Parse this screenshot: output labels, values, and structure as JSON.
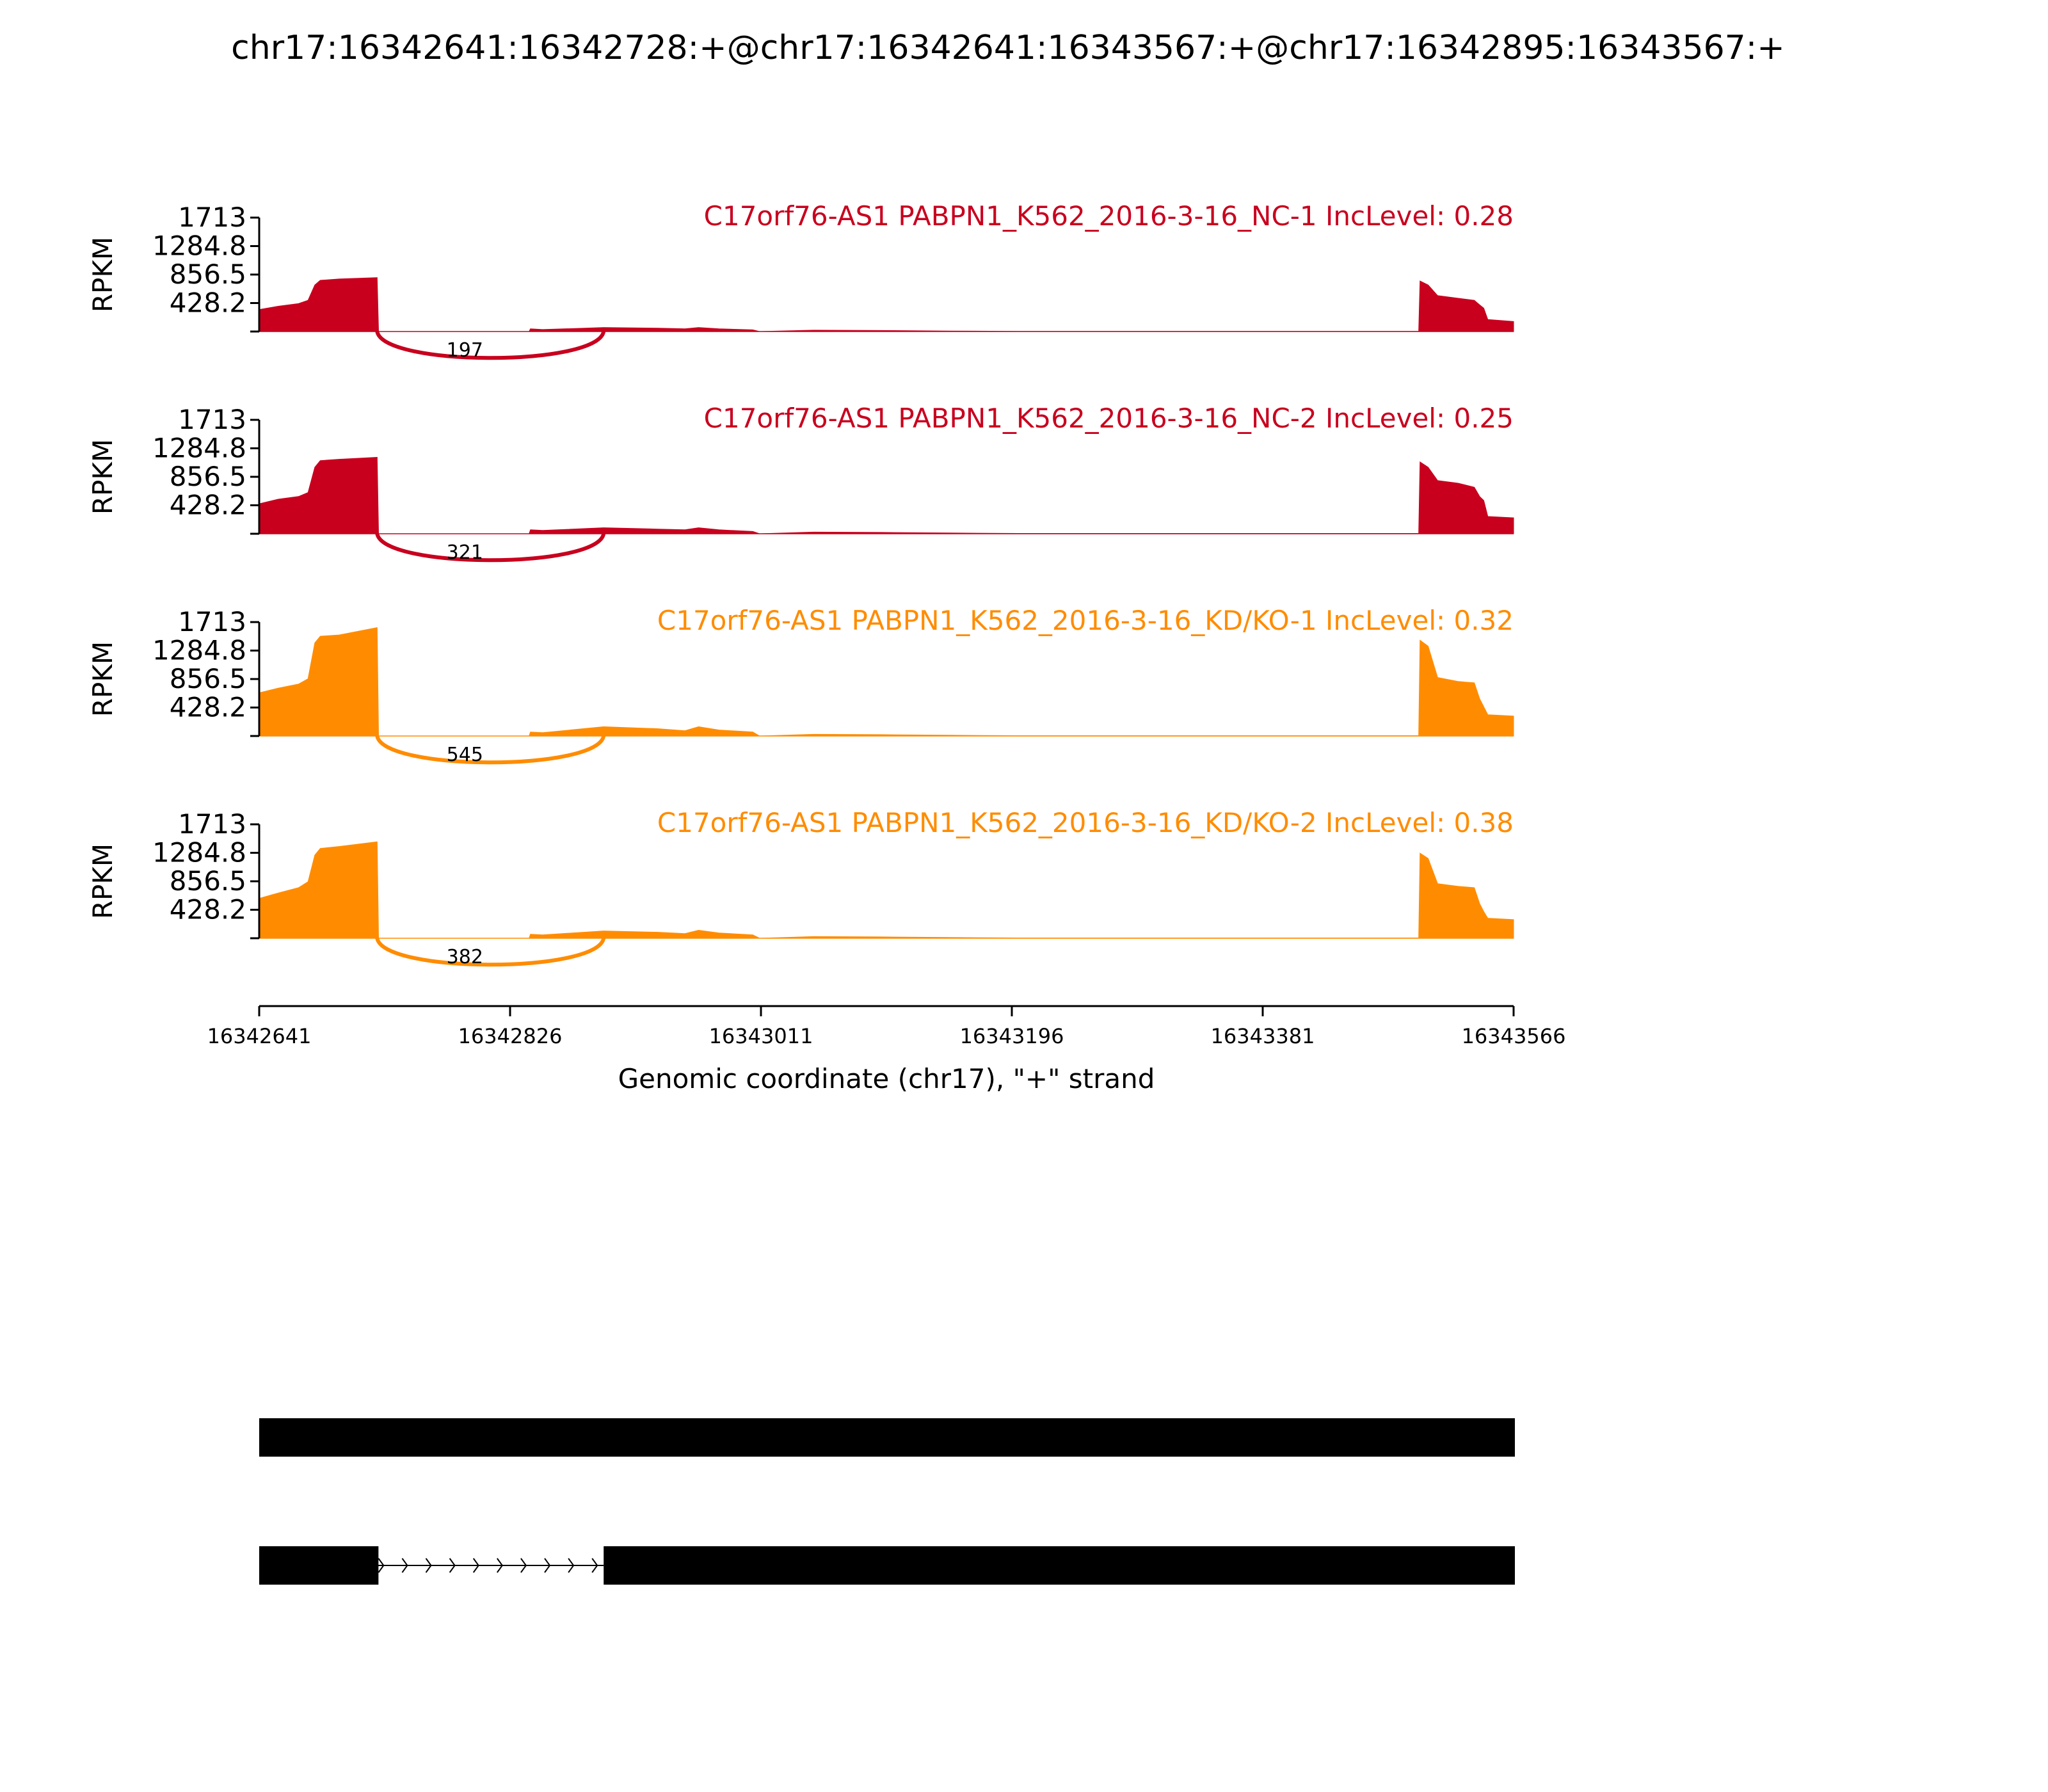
{
  "title": "chr17:16342641:16342728:+@chr17:16342641:16343567:+@chr17:16342895:16343567:+",
  "colors": {
    "nc": "#c8001e",
    "kd": "#ff8c00",
    "axis": "#000000",
    "gene": "#000000"
  },
  "chart_data": {
    "type": "area",
    "ylabel": "RPKM",
    "xlabel": "Genomic coordinate (chr17), \"+\" strand",
    "xlim": [
      16342641,
      16343566
    ],
    "ylim": [
      0,
      1713
    ],
    "yticks": [
      "1713",
      "1284.8",
      "856.5",
      "428.2"
    ],
    "ytick_values": [
      1713,
      1284.8,
      856.5,
      428.2
    ],
    "xticks": [
      "16342641",
      "16342826",
      "16343011",
      "16343196",
      "16343381",
      "16343566"
    ],
    "xtick_values": [
      16342641,
      16342826,
      16343011,
      16343196,
      16343381,
      16343566
    ],
    "tracks": [
      {
        "label": "C17orf76-AS1 PABPN1_K562_2016-3-16_NC-1 IncLevel: 0.28",
        "color_key": "nc",
        "junction": {
          "count": "197",
          "start": 16342728,
          "end": 16342895
        },
        "coverage": [
          [
            16342641,
            330
          ],
          [
            16342655,
            380
          ],
          [
            16342670,
            420
          ],
          [
            16342677,
            470
          ],
          [
            16342682,
            700
          ],
          [
            16342686,
            770
          ],
          [
            16342700,
            790
          ],
          [
            16342728,
            810
          ],
          [
            16342729,
            0
          ],
          [
            16342840,
            0
          ],
          [
            16342841,
            40
          ],
          [
            16342850,
            30
          ],
          [
            16342895,
            60
          ],
          [
            16342935,
            50
          ],
          [
            16342955,
            40
          ],
          [
            16342965,
            60
          ],
          [
            16342980,
            40
          ],
          [
            16343005,
            25
          ],
          [
            16343010,
            0
          ],
          [
            16343050,
            20
          ],
          [
            16343100,
            15
          ],
          [
            16343150,
            8
          ],
          [
            16343200,
            3
          ],
          [
            16343496,
            3
          ],
          [
            16343497,
            760
          ],
          [
            16343503,
            700
          ],
          [
            16343510,
            540
          ],
          [
            16343525,
            500
          ],
          [
            16343537,
            470
          ],
          [
            16343541,
            400
          ],
          [
            16343544,
            350
          ],
          [
            16343547,
            180
          ],
          [
            16343566,
            150
          ]
        ]
      },
      {
        "label": "C17orf76-AS1 PABPN1_K562_2016-3-16_NC-2 IncLevel: 0.25",
        "color_key": "nc",
        "junction": {
          "count": "321",
          "start": 16342728,
          "end": 16342895
        },
        "coverage": [
          [
            16342641,
            450
          ],
          [
            16342655,
            520
          ],
          [
            16342670,
            560
          ],
          [
            16342677,
            620
          ],
          [
            16342682,
            1000
          ],
          [
            16342686,
            1100
          ],
          [
            16342700,
            1120
          ],
          [
            16342728,
            1150
          ],
          [
            16342729,
            0
          ],
          [
            16342840,
            0
          ],
          [
            16342841,
            60
          ],
          [
            16342850,
            50
          ],
          [
            16342895,
            90
          ],
          [
            16342935,
            70
          ],
          [
            16342955,
            60
          ],
          [
            16342965,
            90
          ],
          [
            16342980,
            60
          ],
          [
            16343005,
            35
          ],
          [
            16343010,
            0
          ],
          [
            16343050,
            25
          ],
          [
            16343100,
            20
          ],
          [
            16343150,
            12
          ],
          [
            16343200,
            5
          ],
          [
            16343496,
            5
          ],
          [
            16343497,
            1080
          ],
          [
            16343503,
            1000
          ],
          [
            16343510,
            800
          ],
          [
            16343525,
            760
          ],
          [
            16343537,
            700
          ],
          [
            16343541,
            560
          ],
          [
            16343544,
            500
          ],
          [
            16343547,
            260
          ],
          [
            16343566,
            240
          ]
        ]
      },
      {
        "label": "C17orf76-AS1 PABPN1_K562_2016-3-16_KD/KO-1 IncLevel: 0.32",
        "color_key": "kd",
        "junction": {
          "count": "545",
          "start": 16342728,
          "end": 16342895
        },
        "coverage": [
          [
            16342641,
            650
          ],
          [
            16342655,
            720
          ],
          [
            16342670,
            780
          ],
          [
            16342677,
            860
          ],
          [
            16342682,
            1400
          ],
          [
            16342686,
            1500
          ],
          [
            16342700,
            1520
          ],
          [
            16342728,
            1630
          ],
          [
            16342729,
            0
          ],
          [
            16342840,
            0
          ],
          [
            16342841,
            60
          ],
          [
            16342850,
            50
          ],
          [
            16342895,
            140
          ],
          [
            16342935,
            110
          ],
          [
            16342955,
            80
          ],
          [
            16342965,
            140
          ],
          [
            16342980,
            90
          ],
          [
            16343005,
            60
          ],
          [
            16343010,
            0
          ],
          [
            16343050,
            25
          ],
          [
            16343100,
            20
          ],
          [
            16343150,
            12
          ],
          [
            16343200,
            5
          ],
          [
            16343496,
            5
          ],
          [
            16343497,
            1440
          ],
          [
            16343503,
            1350
          ],
          [
            16343510,
            880
          ],
          [
            16343525,
            820
          ],
          [
            16343537,
            800
          ],
          [
            16343541,
            560
          ],
          [
            16343544,
            440
          ],
          [
            16343547,
            320
          ],
          [
            16343566,
            300
          ]
        ]
      },
      {
        "label": "C17orf76-AS1 PABPN1_K562_2016-3-16_KD/KO-2 IncLevel: 0.38",
        "color_key": "kd",
        "junction": {
          "count": "382",
          "start": 16342728,
          "end": 16342895
        },
        "coverage": [
          [
            16342641,
            600
          ],
          [
            16342655,
            680
          ],
          [
            16342670,
            760
          ],
          [
            16342677,
            850
          ],
          [
            16342682,
            1250
          ],
          [
            16342686,
            1350
          ],
          [
            16342700,
            1380
          ],
          [
            16342728,
            1450
          ],
          [
            16342729,
            0
          ],
          [
            16342840,
            0
          ],
          [
            16342841,
            60
          ],
          [
            16342850,
            50
          ],
          [
            16342895,
            110
          ],
          [
            16342935,
            90
          ],
          [
            16342955,
            70
          ],
          [
            16342965,
            120
          ],
          [
            16342980,
            80
          ],
          [
            16343005,
            50
          ],
          [
            16343010,
            0
          ],
          [
            16343050,
            25
          ],
          [
            16343100,
            20
          ],
          [
            16343150,
            12
          ],
          [
            16343200,
            5
          ],
          [
            16343496,
            5
          ],
          [
            16343497,
            1280
          ],
          [
            16343503,
            1200
          ],
          [
            16343510,
            820
          ],
          [
            16343525,
            780
          ],
          [
            16343537,
            760
          ],
          [
            16343541,
            520
          ],
          [
            16343544,
            400
          ],
          [
            16343547,
            300
          ],
          [
            16343566,
            280
          ]
        ]
      }
    ],
    "gene_models": [
      {
        "exons": [
          [
            16342641,
            16343566
          ]
        ]
      },
      {
        "exons": [
          [
            16342641,
            16342728
          ],
          [
            16342895,
            16343566
          ]
        ],
        "arrow_count": 10
      }
    ]
  }
}
